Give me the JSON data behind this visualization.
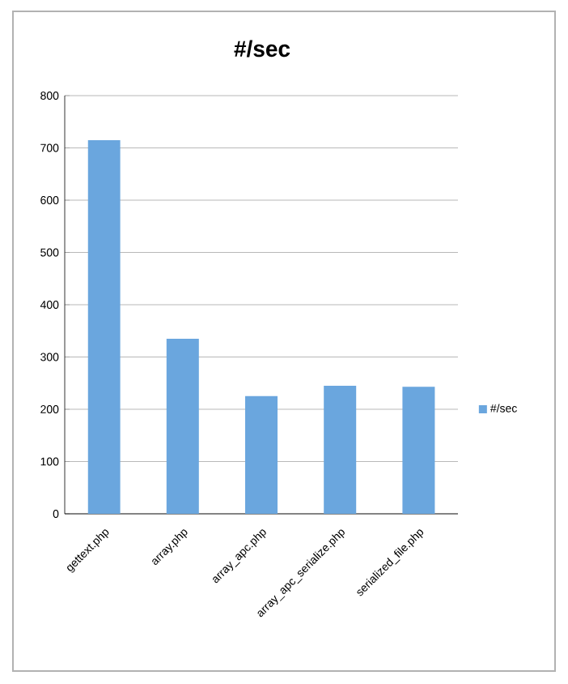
{
  "chart_data": {
    "type": "bar",
    "title": "#/sec",
    "categories": [
      "gettext.php",
      "array.php",
      "array_apc.php",
      "array_apc_serialize.php",
      "serialized_file.php"
    ],
    "series": [
      {
        "name": "#/sec",
        "color": "#6aa6de",
        "values": [
          715,
          335,
          225,
          245,
          243
        ]
      }
    ],
    "ylim": [
      0,
      800
    ],
    "yticks": [
      0,
      100,
      200,
      300,
      400,
      500,
      600,
      700,
      800
    ],
    "grid": "y",
    "legend": "right"
  }
}
